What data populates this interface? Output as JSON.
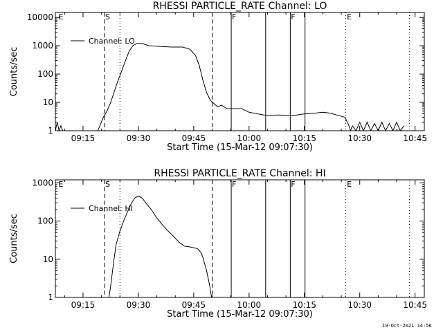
{
  "footer": {
    "timestamp": "19-Oct-2021 14:56"
  },
  "chart_data": [
    {
      "type": "line",
      "title": "RHESSI PARTICLE_RATE Channel: LO",
      "xlabel": "Start Time (15-Mar-12 09:07:30)",
      "ylabel": "Counts/sec",
      "y_scale": "log",
      "ylim": [
        1,
        15000
      ],
      "xlim": [
        "09:07:30",
        "10:47:30"
      ],
      "x_tick_labels": [
        "09:15",
        "09:30",
        "09:45",
        "10:00",
        "10:15",
        "10:30",
        "10:45"
      ],
      "y_tick_labels": [
        "1",
        "10",
        "100",
        "1000",
        "10000"
      ],
      "y_tick_values": [
        1,
        10,
        100,
        1000,
        10000
      ],
      "legend": {
        "placement": "top-left",
        "entries": [
          "Channel: LO"
        ]
      },
      "flag_letters": [
        {
          "time": "09:08:20",
          "text": "E"
        },
        {
          "time": "09:21:00",
          "text": "S"
        },
        {
          "time": "09:55:20",
          "text": "F"
        },
        {
          "time": "10:11:20",
          "text": "F"
        },
        {
          "time": "10:26:30",
          "text": "E"
        }
      ],
      "marker_lines": [
        {
          "time": "09:20:50",
          "style": "dashed"
        },
        {
          "time": "09:25:00",
          "style": "dotted"
        },
        {
          "time": "09:50:00",
          "style": "dashed"
        },
        {
          "time": "09:55:10",
          "style": "solid"
        },
        {
          "time": "10:04:30",
          "style": "solid"
        },
        {
          "time": "10:11:10",
          "style": "solid"
        },
        {
          "time": "10:15:10",
          "style": "solid"
        },
        {
          "time": "10:26:10",
          "style": "dotted"
        },
        {
          "time": "10:43:30",
          "style": "dotted"
        }
      ],
      "series": [
        {
          "name": "Channel: LO",
          "points": [
            [
              "09:07:30",
              1
            ],
            [
              "09:08:00",
              2
            ],
            [
              "09:08:30",
              1
            ],
            [
              "09:09:00",
              1.5
            ],
            [
              "09:09:30",
              1
            ],
            [
              "09:19:00",
              1
            ],
            [
              "09:19:40",
              1.6
            ],
            [
              "09:20:30",
              3
            ],
            [
              "09:21:30",
              5
            ],
            [
              "09:22:30",
              10
            ],
            [
              "09:23:30",
              25
            ],
            [
              "09:24:30",
              60
            ],
            [
              "09:25:30",
              130
            ],
            [
              "09:26:30",
              300
            ],
            [
              "09:27:30",
              650
            ],
            [
              "09:28:30",
              1000
            ],
            [
              "09:29:30",
              1200
            ],
            [
              "09:31:00",
              1200
            ],
            [
              "09:33:00",
              1000
            ],
            [
              "09:36:00",
              950
            ],
            [
              "09:39:00",
              900
            ],
            [
              "09:42:00",
              900
            ],
            [
              "09:44:00",
              750
            ],
            [
              "09:45:30",
              450
            ],
            [
              "09:46:30",
              200
            ],
            [
              "09:47:30",
              60
            ],
            [
              "09:48:30",
              22
            ],
            [
              "09:49:30",
              12
            ],
            [
              "09:50:30",
              9
            ],
            [
              "09:51:30",
              7
            ],
            [
              "09:52:30",
              8
            ],
            [
              "09:54:00",
              6
            ],
            [
              "09:56:00",
              6
            ],
            [
              "09:58:00",
              6
            ],
            [
              "10:00:00",
              4.5
            ],
            [
              "10:02:00",
              4
            ],
            [
              "10:04:00",
              3.6
            ],
            [
              "10:06:00",
              3.5
            ],
            [
              "10:08:00",
              3.6
            ],
            [
              "10:10:00",
              3.5
            ],
            [
              "10:12:00",
              3.4
            ],
            [
              "10:14:00",
              3.8
            ],
            [
              "10:16:00",
              4
            ],
            [
              "10:18:00",
              4.2
            ],
            [
              "10:20:00",
              4.5
            ],
            [
              "10:22:00",
              4.2
            ],
            [
              "10:24:00",
              3.5
            ],
            [
              "10:26:00",
              3
            ],
            [
              "10:27:00",
              1.6
            ],
            [
              "10:27:30",
              1
            ],
            [
              "10:28:00",
              1.5
            ],
            [
              "10:29:00",
              1
            ],
            [
              "10:30:00",
              2
            ],
            [
              "10:31:00",
              1
            ],
            [
              "10:32:00",
              2
            ],
            [
              "10:33:00",
              1
            ],
            [
              "10:34:00",
              1.8
            ],
            [
              "10:35:00",
              1
            ],
            [
              "10:36:00",
              2
            ],
            [
              "10:37:00",
              1
            ],
            [
              "10:38:00",
              1.8
            ],
            [
              "10:39:00",
              1
            ],
            [
              "10:40:00",
              2
            ],
            [
              "10:41:00",
              1
            ],
            [
              "10:42:00",
              1.5
            ]
          ]
        }
      ]
    },
    {
      "type": "line",
      "title": "RHESSI PARTICLE_RATE Channel: HI",
      "xlabel": "Start Time (15-Mar-12 09:07:30)",
      "ylabel": "Counts/sec",
      "y_scale": "log",
      "ylim": [
        1,
        1200
      ],
      "xlim": [
        "09:07:30",
        "10:47:30"
      ],
      "x_tick_labels": [
        "09:15",
        "09:30",
        "09:45",
        "10:00",
        "10:15",
        "10:30",
        "10:45"
      ],
      "y_tick_labels": [
        "1",
        "10",
        "100",
        "1000"
      ],
      "y_tick_values": [
        1,
        10,
        100,
        1000
      ],
      "legend": {
        "placement": "top-left",
        "entries": [
          "Channel: HI"
        ]
      },
      "flag_letters": [
        {
          "time": "09:08:20",
          "text": "E"
        },
        {
          "time": "09:21:00",
          "text": "S"
        },
        {
          "time": "09:55:20",
          "text": "F"
        },
        {
          "time": "10:11:20",
          "text": "F"
        },
        {
          "time": "10:26:30",
          "text": "E"
        }
      ],
      "marker_lines": [
        {
          "time": "09:20:50",
          "style": "dashed"
        },
        {
          "time": "09:25:00",
          "style": "dotted"
        },
        {
          "time": "09:50:00",
          "style": "dashed"
        },
        {
          "time": "09:55:10",
          "style": "solid"
        },
        {
          "time": "10:04:30",
          "style": "solid"
        },
        {
          "time": "10:11:10",
          "style": "solid"
        },
        {
          "time": "10:15:10",
          "style": "solid"
        },
        {
          "time": "10:26:10",
          "style": "dotted"
        },
        {
          "time": "10:43:30",
          "style": "dotted"
        }
      ],
      "series": [
        {
          "name": "Channel: HI",
          "points": [
            [
              "09:22:00",
              1
            ],
            [
              "09:22:30",
              2
            ],
            [
              "09:23:00",
              5
            ],
            [
              "09:23:30",
              12
            ],
            [
              "09:24:00",
              25
            ],
            [
              "09:25:00",
              55
            ],
            [
              "09:26:00",
              100
            ],
            [
              "09:27:00",
              170
            ],
            [
              "09:28:00",
              280
            ],
            [
              "09:29:00",
              400
            ],
            [
              "09:30:00",
              450
            ],
            [
              "09:31:00",
              400
            ],
            [
              "09:32:00",
              300
            ],
            [
              "09:33:30",
              200
            ],
            [
              "09:35:00",
              120
            ],
            [
              "09:36:30",
              80
            ],
            [
              "09:38:00",
              55
            ],
            [
              "09:39:30",
              40
            ],
            [
              "09:41:00",
              28
            ],
            [
              "09:42:30",
              22
            ],
            [
              "09:44:00",
              21
            ],
            [
              "09:45:00",
              20
            ],
            [
              "09:46:00",
              19
            ],
            [
              "09:47:00",
              15
            ],
            [
              "09:47:30",
              11
            ],
            [
              "09:48:30",
              5
            ],
            [
              "09:49:20",
              2
            ],
            [
              "09:49:50",
              1
            ]
          ]
        }
      ]
    }
  ]
}
